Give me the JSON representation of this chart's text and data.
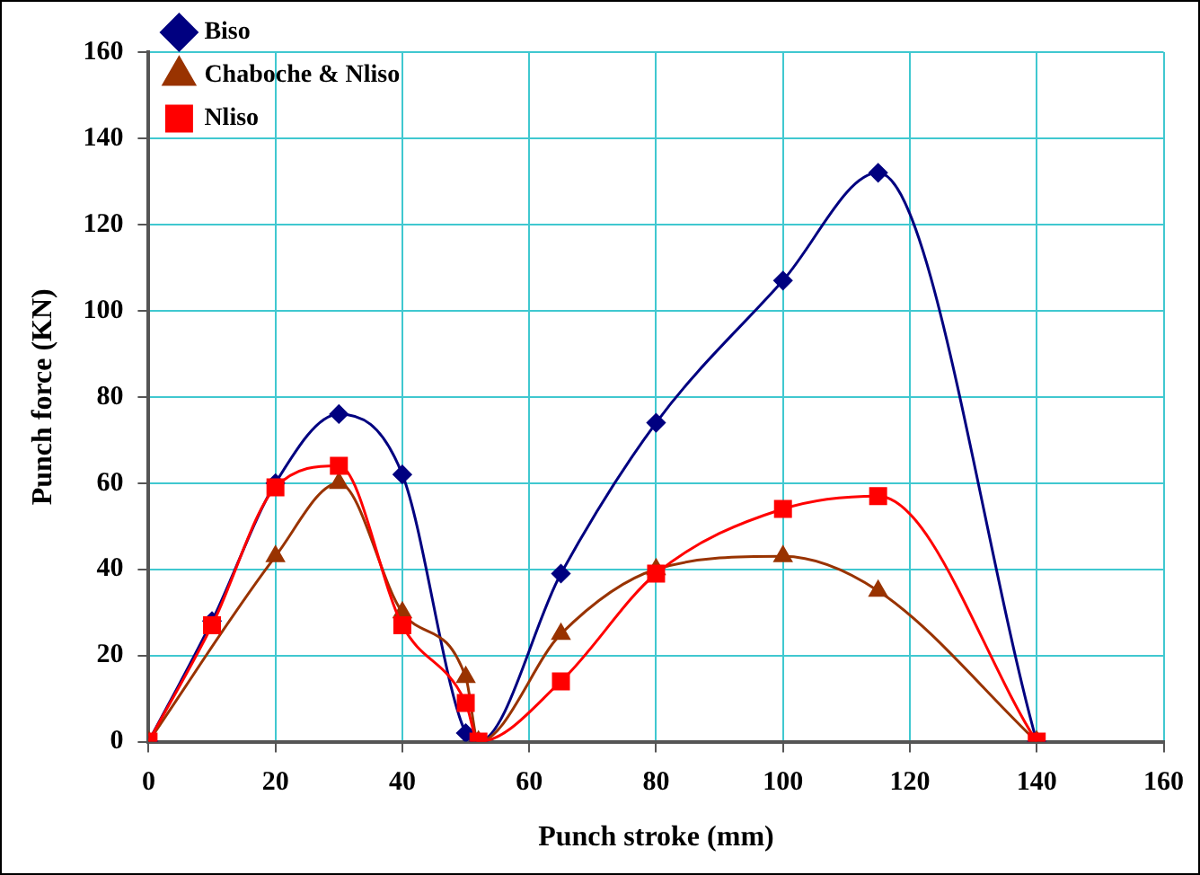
{
  "chart_data": {
    "type": "line",
    "xlabel": "Punch stroke (mm)",
    "ylabel": "Punch force (KN)",
    "xlim": [
      0,
      160
    ],
    "xticks": [
      0,
      20,
      40,
      60,
      80,
      100,
      120,
      140,
      160
    ],
    "ylim": [
      0,
      160
    ],
    "yticks": [
      0,
      20,
      40,
      60,
      80,
      100,
      120,
      140,
      160
    ],
    "grid": true,
    "legend": "top left",
    "series": [
      {
        "name": "Biso",
        "color": "#000080",
        "marker": "diamond",
        "x": [
          0,
          10,
          20,
          30,
          40,
          50,
          52,
          65,
          80,
          100,
          115,
          140
        ],
        "values": [
          0,
          28,
          60,
          76,
          62,
          2,
          0,
          39,
          74,
          107,
          132,
          0
        ]
      },
      {
        "name": "Chaboche & Nliso",
        "color": "#993300",
        "marker": "triangle",
        "x": [
          0,
          20,
          30,
          40,
          50,
          52,
          65,
          80,
          100,
          115,
          140
        ],
        "values": [
          0,
          43,
          60,
          30,
          15,
          0,
          25,
          40,
          43,
          35,
          0
        ]
      },
      {
        "name": "Nliso",
        "color": "#ff0000",
        "marker": "square",
        "x": [
          0,
          10,
          20,
          30,
          40,
          50,
          52,
          65,
          80,
          100,
          115,
          140
        ],
        "values": [
          0,
          27,
          59,
          64,
          27,
          9,
          0,
          14,
          39,
          54,
          57,
          0
        ]
      }
    ]
  }
}
